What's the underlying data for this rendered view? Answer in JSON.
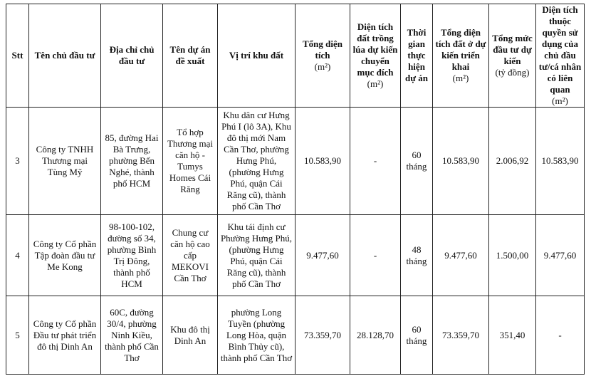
{
  "headers": [
    {
      "label": "Stt",
      "unit": ""
    },
    {
      "label": "Tên chủ đầu tư",
      "unit": ""
    },
    {
      "label": "Địa chỉ chủ đầu tư",
      "unit": ""
    },
    {
      "label": "Tên dự án đề xuất",
      "unit": ""
    },
    {
      "label": "Vị trí khu đất",
      "unit": ""
    },
    {
      "label": "Tổng diện tích",
      "unit": "(m²)"
    },
    {
      "label": "Diện tích đất trồng lúa dự kiến chuyển mục đích",
      "unit": "(m²)"
    },
    {
      "label": "Thời gian thực hiện dự án",
      "unit": ""
    },
    {
      "label": "Tổng diện tích đất ở dự kiến triển khai",
      "unit": "(m²)"
    },
    {
      "label": "Tổng mức đầu tư dự kiến",
      "unit": "(tỷ đồng)"
    },
    {
      "label": "Diện tích thuộc quyền sử dụng của chủ đầu tư/cá nhân có liên quan",
      "unit": "(m²)"
    }
  ],
  "rows": [
    [
      "3",
      "Công ty TNHH Thương mại Tùng Mỹ",
      "85, đường Hai Bà Trưng, phường Bến Nghé, thành phố HCM",
      "Tổ hợp Thương mại căn hộ - Tumys Homes Cái Răng",
      "Khu dân cư Hưng Phú I (lô 3A), Khu đô thị mới Nam Cần Thơ, phường Hưng Phú, (phường Hưng Phú, quận Cái Răng cũ), thành phố Cần Thơ",
      "10.583,90",
      "-",
      "60 tháng",
      "10.583,90",
      "2.006,92",
      "10.583,90"
    ],
    [
      "4",
      "Công ty Cổ phần Tập đoàn đầu tư Me Kong",
      "98-100-102, đường số 34, phường Bình Trị Đông, thành phố HCM",
      "Chung cư căn hộ cao cấp MEKOVI Cần Thơ",
      "Khu tái định cư Phường Hưng Phú, (phường Hưng Phú, quận Cái Răng cũ), thành phố Cần Thơ",
      "9.477,60",
      "-",
      "48 tháng",
      "9.477,60",
      "1.500,00",
      "9.477,60"
    ],
    [
      "5",
      "Công ty Cổ phần Đầu tư phát triển đô thị Dinh An",
      "60C, đường 30/4, phường Ninh Kiều, thành phố Cần Thơ",
      "Khu đô thị Dinh An",
      "phường Long Tuyền (phường Long Hòa, quận Bình Thủy cũ), thành phố Cần Thơ",
      "73.359,70",
      "28.128,70",
      "60 tháng",
      "73.359,70",
      "351,40",
      "-"
    ]
  ]
}
